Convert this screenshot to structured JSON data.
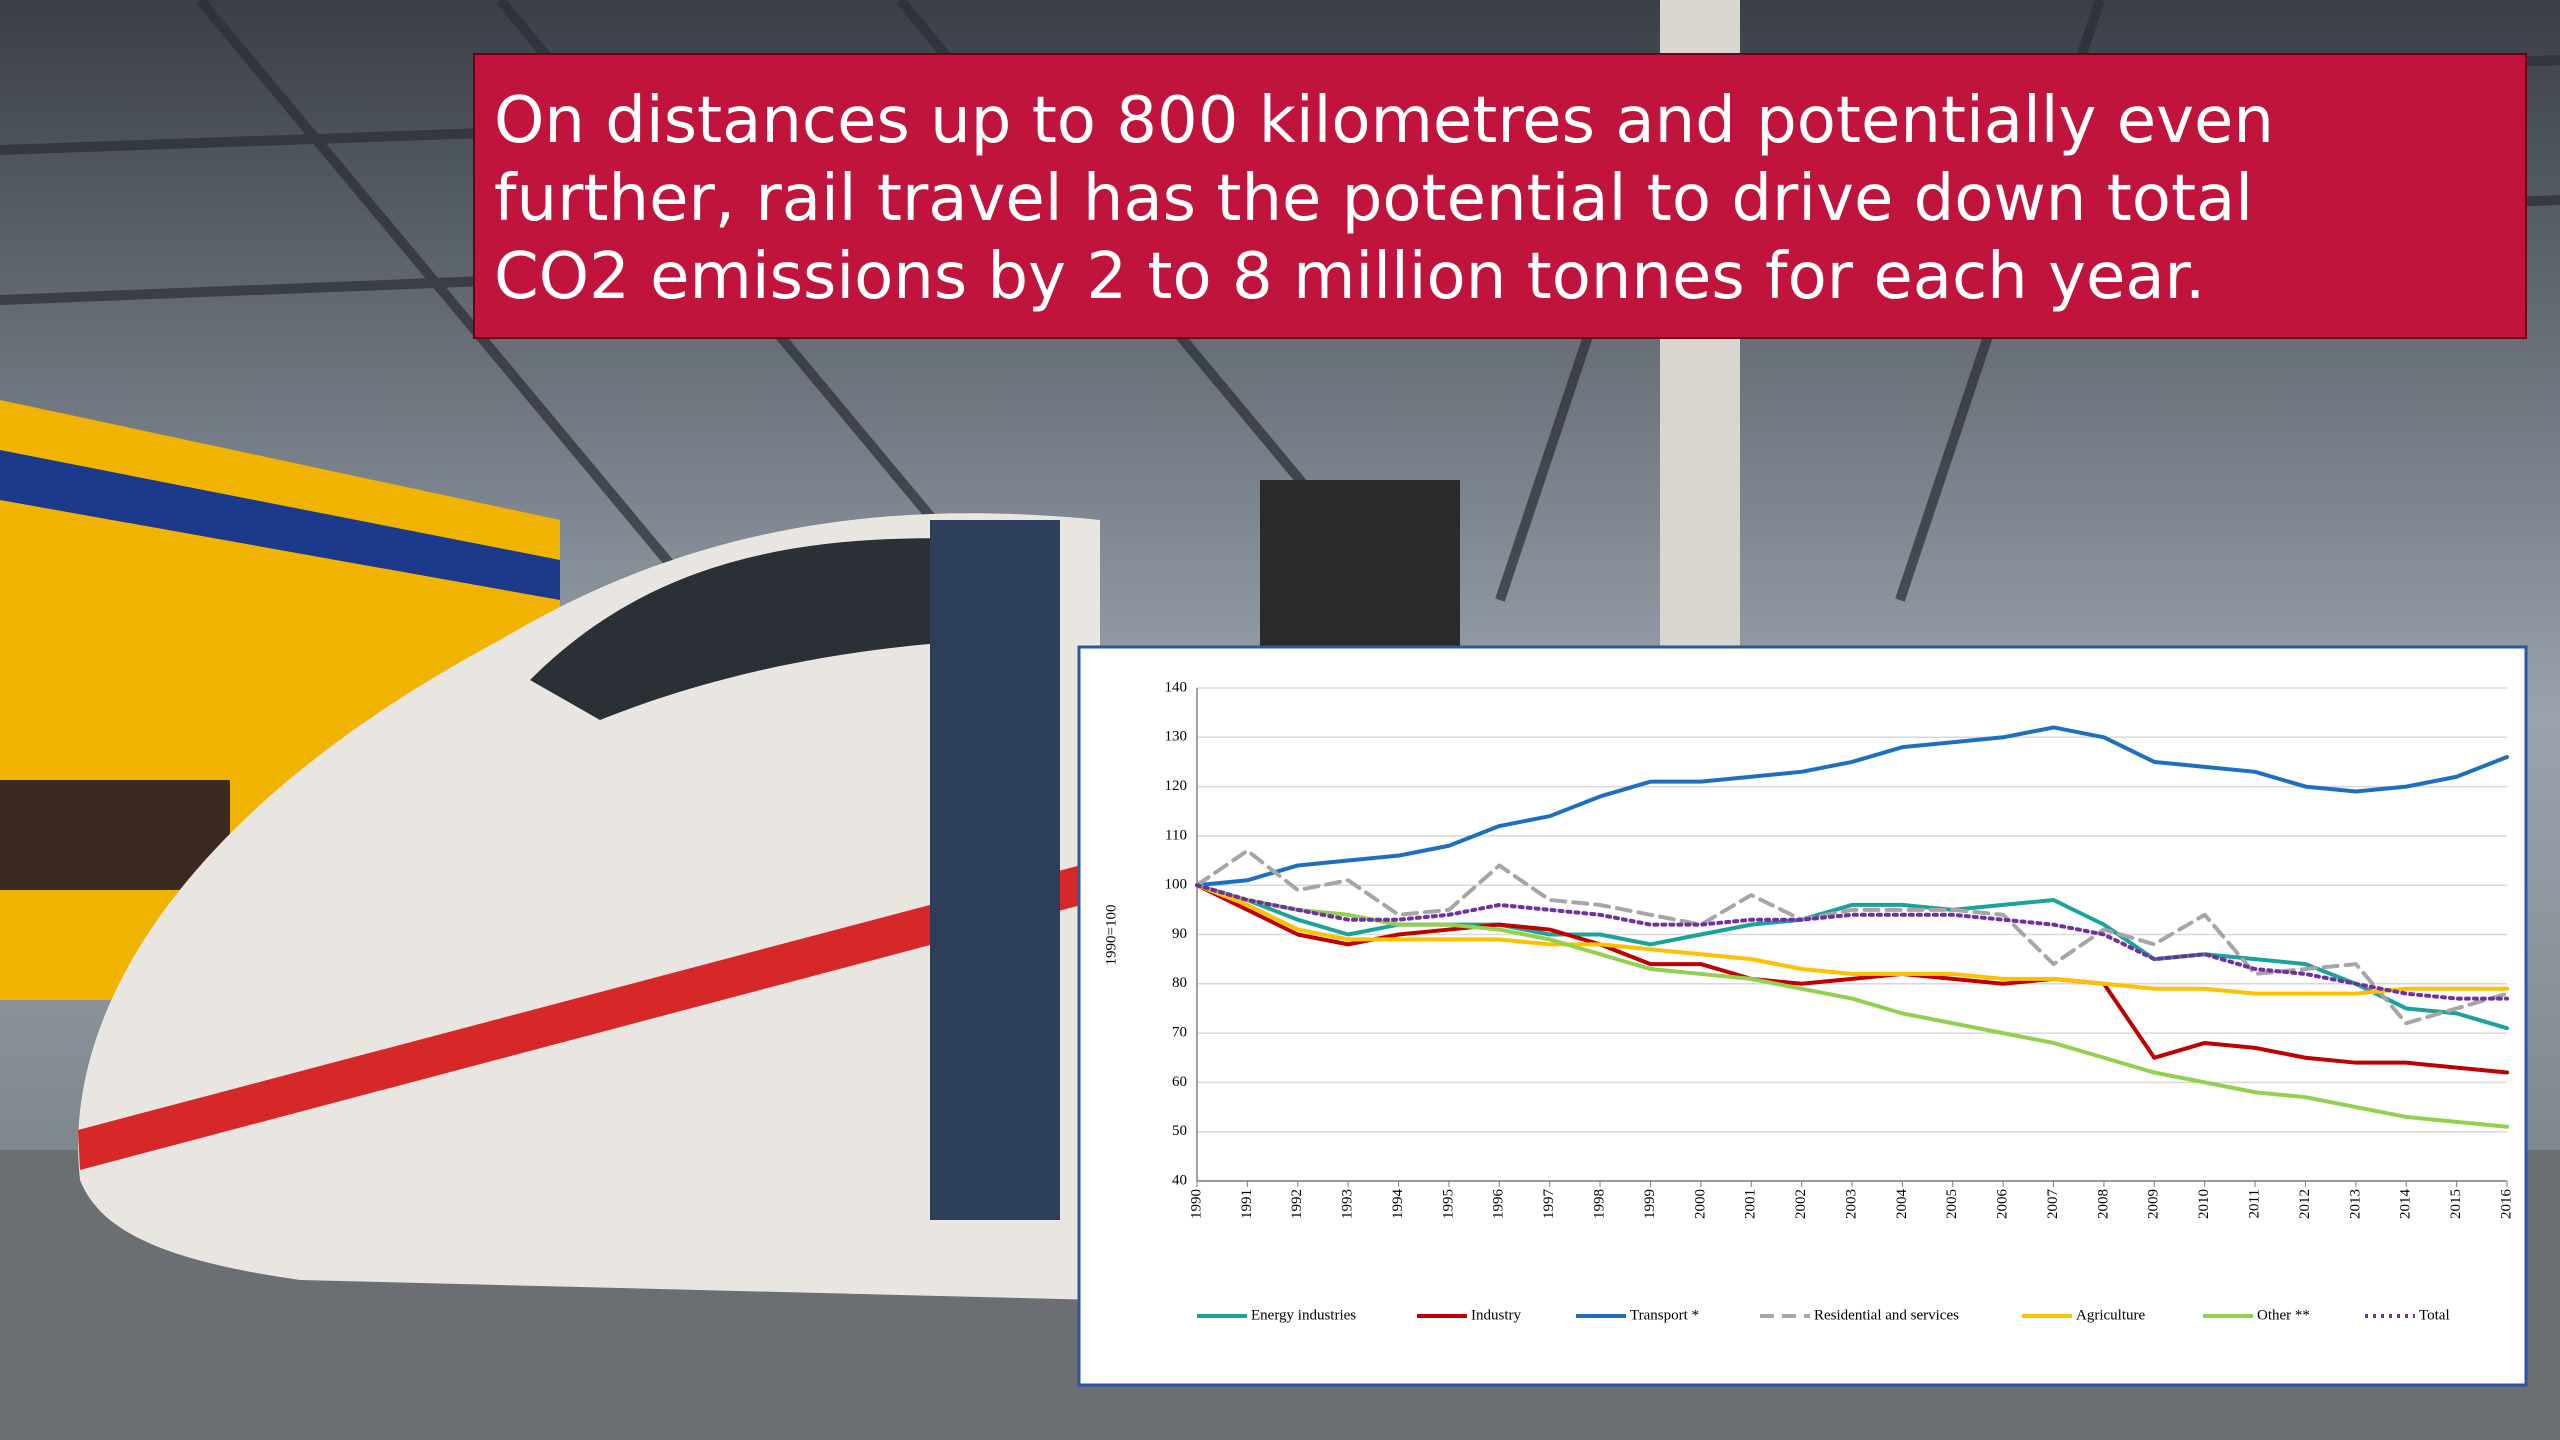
{
  "headline_lines": [
    "On distances up to 800 kilometres and potentially even",
    "further, rail travel has the potential to drive down total",
    "CO2 emissions by 2 to 8 million tonnes for each year."
  ],
  "chart_data": {
    "type": "line",
    "y_label": "1990=100",
    "categories": [
      "1990",
      "1991",
      "1992",
      "1993",
      "1994",
      "1995",
      "1996",
      "1997",
      "1998",
      "1999",
      "2000",
      "2001",
      "2002",
      "2003",
      "2004",
      "2005",
      "2006",
      "2007",
      "2008",
      "2009",
      "2010",
      "2011",
      "2012",
      "2013",
      "2014",
      "2015",
      "2016"
    ],
    "ylim": [
      40,
      140
    ],
    "yticks": [
      40,
      50,
      60,
      70,
      80,
      90,
      100,
      110,
      120,
      130,
      140
    ],
    "grid": true,
    "series": [
      {
        "name": "Energy industries",
        "color": "#1aa39a",
        "style": "solid",
        "values": [
          100,
          97,
          93,
          90,
          92,
          92,
          92,
          90,
          90,
          88,
          90,
          92,
          93,
          96,
          96,
          95,
          96,
          97,
          92,
          85,
          86,
          85,
          84,
          80,
          75,
          74,
          71
        ]
      },
      {
        "name": "Industry",
        "color": "#c00000",
        "style": "solid",
        "values": [
          100,
          95,
          90,
          88,
          90,
          91,
          92,
          91,
          88,
          84,
          84,
          81,
          80,
          81,
          82,
          81,
          80,
          81,
          80,
          65,
          68,
          67,
          65,
          64,
          64,
          63,
          62
        ]
      },
      {
        "name": "Transport *",
        "color": "#1f6fbf",
        "style": "solid",
        "values": [
          100,
          101,
          104,
          105,
          106,
          108,
          112,
          114,
          118,
          121,
          121,
          122,
          123,
          125,
          128,
          129,
          130,
          132,
          130,
          125,
          124,
          123,
          120,
          119,
          120,
          122,
          126
        ]
      },
      {
        "name": "Residential and services",
        "color": "#a6a6a6",
        "style": "dashed",
        "values": [
          100,
          107,
          99,
          101,
          94,
          95,
          104,
          97,
          96,
          94,
          92,
          98,
          93,
          95,
          95,
          95,
          94,
          84,
          91,
          88,
          94,
          82,
          83,
          84,
          72,
          75,
          78
        ]
      },
      {
        "name": "Agriculture",
        "color": "#ffc000",
        "style": "solid",
        "values": [
          100,
          96,
          91,
          89,
          89,
          89,
          89,
          88,
          88,
          87,
          86,
          85,
          83,
          82,
          82,
          82,
          81,
          81,
          80,
          79,
          79,
          78,
          78,
          78,
          79,
          79,
          79
        ]
      },
      {
        "name": "Other **",
        "color": "#92d050",
        "style": "solid",
        "values": [
          100,
          97,
          95,
          94,
          92,
          92,
          91,
          89,
          86,
          83,
          82,
          81,
          79,
          77,
          74,
          72,
          70,
          68,
          65,
          62,
          60,
          58,
          57,
          55,
          53,
          52,
          51
        ]
      },
      {
        "name": "Total",
        "color": "#7030a0",
        "style": "dotted",
        "values": [
          100,
          97,
          95,
          93,
          93,
          94,
          96,
          95,
          94,
          92,
          92,
          93,
          93,
          94,
          94,
          94,
          93,
          92,
          90,
          85,
          86,
          83,
          82,
          80,
          78,
          77,
          77
        ]
      }
    ]
  }
}
